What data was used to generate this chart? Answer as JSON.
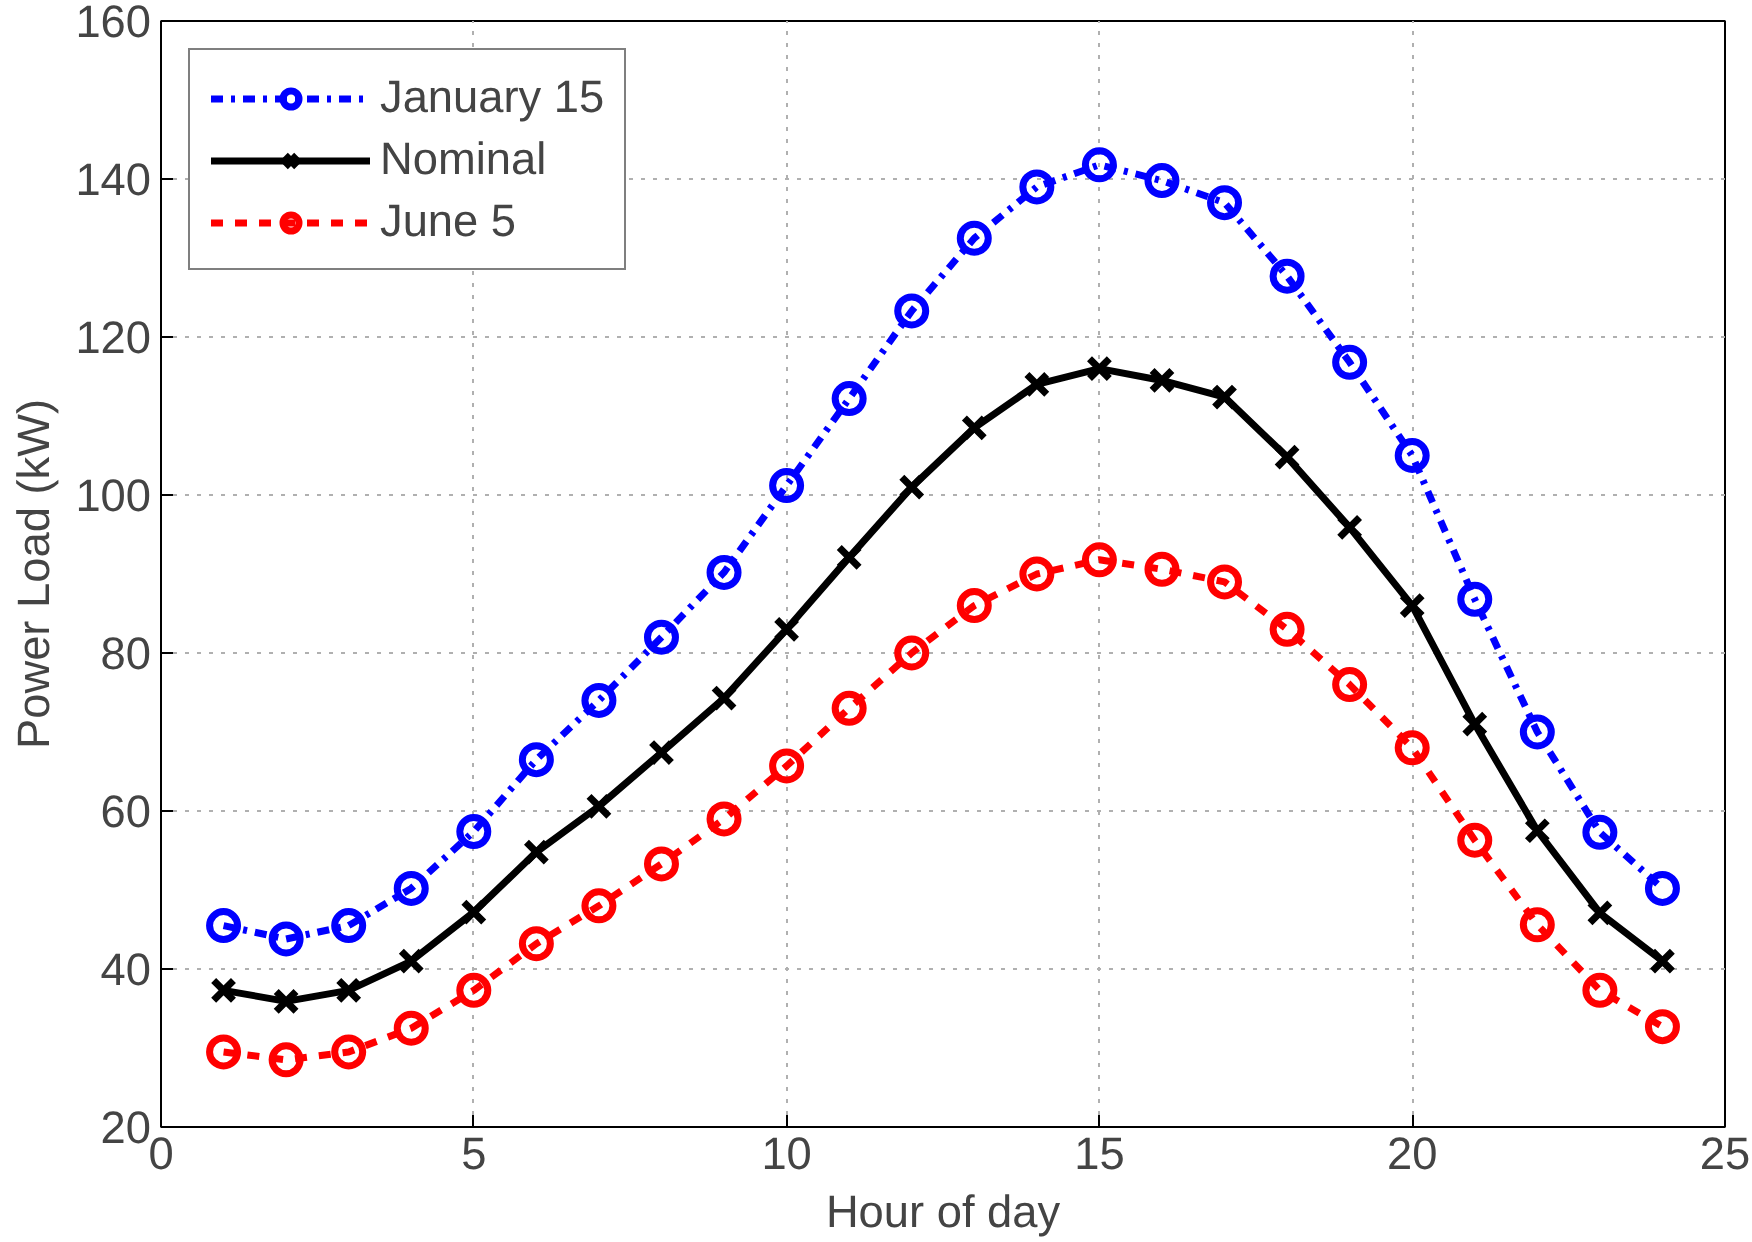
{
  "chart_data": {
    "type": "line",
    "xlabel": "Hour of day",
    "ylabel": "Power Load (kW)",
    "x": [
      1,
      2,
      3,
      4,
      5,
      6,
      7,
      8,
      9,
      10,
      11,
      12,
      13,
      14,
      15,
      16,
      17,
      18,
      19,
      20,
      21,
      22,
      23,
      24
    ],
    "xlim": [
      0,
      25
    ],
    "xticks": [
      0,
      5,
      10,
      15,
      20,
      25
    ],
    "ylim": [
      20,
      160
    ],
    "yticks": [
      20,
      40,
      60,
      80,
      100,
      120,
      140,
      160
    ],
    "grid": true,
    "legend": "top left",
    "series": [
      {
        "name": "January 15",
        "color": "#0000ff",
        "marker": "circle",
        "line_style": "dashdot",
        "values": [
          45.5,
          43.8,
          45.5,
          50.2,
          57.4,
          66.5,
          74,
          82,
          90.2,
          101.2,
          112.2,
          123.3,
          132.5,
          139,
          141.8,
          139.8,
          137,
          127.7,
          116.8,
          105,
          86.8,
          70,
          57.3,
          50.2
        ]
      },
      {
        "name": "Nominal",
        "color": "#000000",
        "marker": "cross",
        "line_style": "solid",
        "values": [
          37.3,
          35.9,
          37.3,
          41,
          47.2,
          54.8,
          60.6,
          67.4,
          74.3,
          83,
          92.1,
          101,
          108.5,
          114,
          116,
          114.5,
          112.4,
          104.8,
          95.9,
          86,
          71,
          57.5,
          47.1,
          41
        ]
      },
      {
        "name": "June 5",
        "color": "#ff0000",
        "marker": "circle",
        "line_style": "dashed",
        "values": [
          29.5,
          28.5,
          29.5,
          32.5,
          37.3,
          43.2,
          48,
          53.3,
          59,
          65.7,
          73,
          80,
          86,
          90,
          91.8,
          90.6,
          89,
          83,
          76,
          68,
          56.3,
          45.6,
          37.3,
          32.7
        ]
      }
    ]
  }
}
